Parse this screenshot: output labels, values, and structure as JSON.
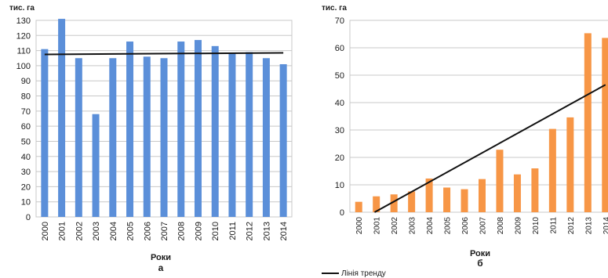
{
  "colors": {
    "bar_a": "#5b8fd9",
    "bar_b": "#f79646",
    "trend": "#111111",
    "grid": "#c8c8c8"
  },
  "chart_data": [
    {
      "type": "bar",
      "ylabel": "тис. га",
      "xlabel": "Роки",
      "panel_label": "а",
      "ylim": [
        0,
        130
      ],
      "yticks": [
        0,
        10,
        20,
        30,
        40,
        50,
        60,
        70,
        80,
        90,
        100,
        110,
        120,
        130
      ],
      "grid": true,
      "categories": [
        "2000",
        "2001",
        "2002",
        "2003",
        "2004",
        "2005",
        "2006",
        "2007",
        "2008",
        "2009",
        "2010",
        "2011",
        "2012",
        "2013",
        "2014"
      ],
      "values": [
        111,
        131,
        105,
        68,
        105,
        116,
        106,
        105,
        116,
        117,
        113,
        108,
        109,
        105,
        101
      ],
      "trend": {
        "start": 107.5,
        "end": 108.5
      }
    },
    {
      "type": "bar",
      "ylabel": "тис. га",
      "xlabel": "Роки",
      "panel_label": "б",
      "ylim": [
        0,
        70
      ],
      "yticks": [
        0,
        10,
        20,
        30,
        40,
        50,
        60,
        70
      ],
      "grid": true,
      "categories": [
        "2000",
        "2001",
        "2002",
        "2003",
        "2004",
        "2005",
        "2006",
        "2007",
        "2008",
        "2009",
        "2010",
        "2011",
        "2012",
        "2013",
        "2014"
      ],
      "values": [
        3.8,
        5.8,
        6.5,
        7.6,
        12.3,
        9.0,
        8.4,
        12.1,
        22.8,
        13.8,
        16.0,
        30.4,
        34.6,
        65.3,
        63.6
      ],
      "trend": {
        "start": -3.2,
        "end": 46.5
      },
      "legend": {
        "label": "Лінія тренду",
        "position": "bottom-left"
      }
    }
  ]
}
